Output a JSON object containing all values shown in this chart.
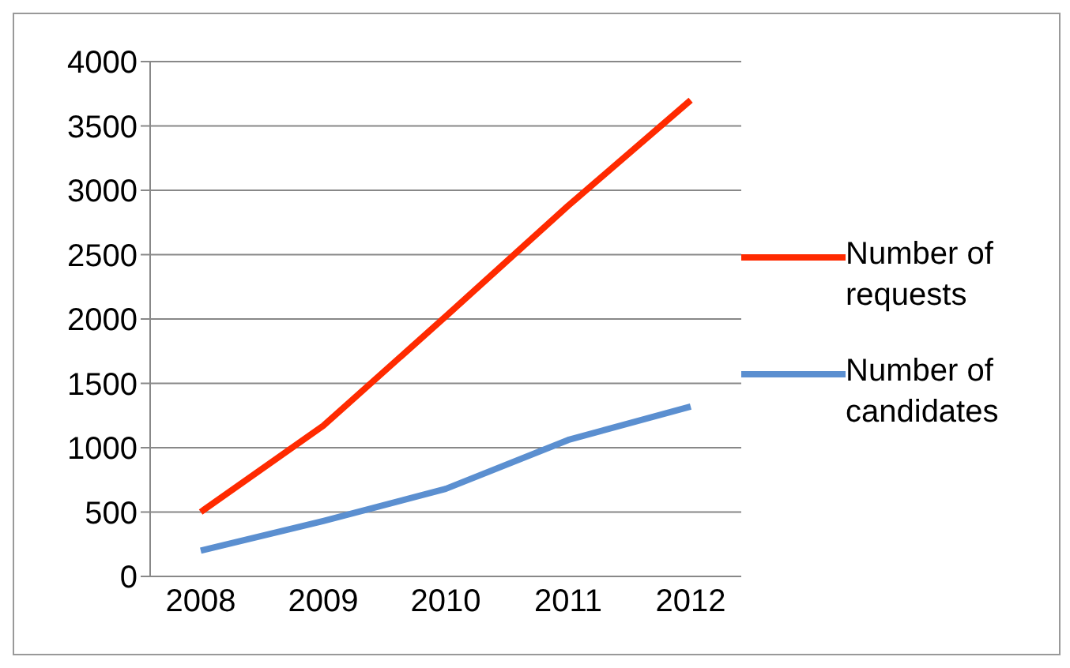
{
  "chart_data": {
    "type": "line",
    "categories": [
      "2008",
      "2009",
      "2010",
      "2011",
      "2012"
    ],
    "series": [
      {
        "name": "Number of requests",
        "color": "#ff2a00",
        "values": [
          500,
          1170,
          2020,
          2880,
          3700
        ]
      },
      {
        "name": "Number of candidates",
        "color": "#5b8fd0",
        "values": [
          200,
          430,
          680,
          1060,
          1320
        ]
      }
    ],
    "ylim": [
      0,
      4000
    ],
    "yticks": [
      0,
      500,
      1000,
      1500,
      2000,
      2500,
      3000,
      3500,
      4000
    ],
    "grid": "y",
    "legend": "right",
    "marker": "none",
    "line_style": "solid"
  }
}
